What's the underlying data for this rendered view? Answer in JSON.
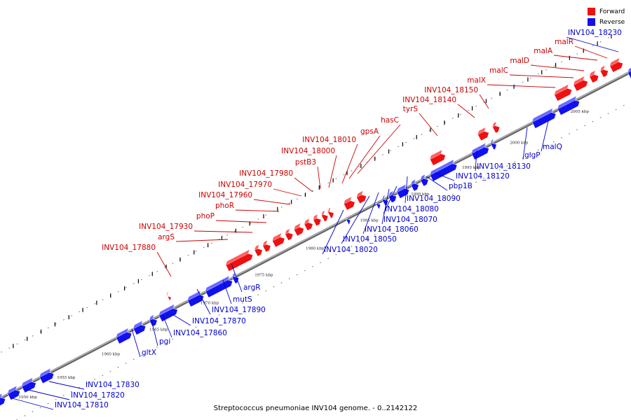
{
  "legend": {
    "forward_label": "Forward",
    "reverse_label": "Reverse"
  },
  "colors": {
    "forward": "#ee1111",
    "reverse": "#1111ee",
    "forward_text": "#cc0000",
    "reverse_text": "#0000cc",
    "backbone": "#888888"
  },
  "caption": "Streptococcus pneumoniae INV104 genome. - 0..2142122",
  "ticks": [
    {
      "label": "1950 kbp"
    },
    {
      "label": "1955 kbp"
    },
    {
      "label": "1960 kbp"
    },
    {
      "label": "1965 kbp"
    },
    {
      "label": "1970 kbp"
    },
    {
      "label": "1975 kbp"
    },
    {
      "label": "1980 kbp"
    },
    {
      "label": "1985 kbp"
    },
    {
      "label": "1990 kbp"
    },
    {
      "label": "1995 kbp"
    },
    {
      "label": "2000 kbp"
    },
    {
      "label": "2005 kbp"
    }
  ],
  "forward_genes": [
    {
      "label": "INV104_17880"
    },
    {
      "label": "argS"
    },
    {
      "label": "INV104_17930"
    },
    {
      "label": "phoP"
    },
    {
      "label": "phoR"
    },
    {
      "label": "INV104_17960"
    },
    {
      "label": "INV104_17970"
    },
    {
      "label": "INV104_17980"
    },
    {
      "label": "pstB3"
    },
    {
      "label": "INV104_18000"
    },
    {
      "label": "INV104_18010"
    },
    {
      "label": "gpsA"
    },
    {
      "label": "hasC"
    },
    {
      "label": "tyrS"
    },
    {
      "label": "INV104_18140"
    },
    {
      "label": "INV104_18150"
    },
    {
      "label": "malX"
    },
    {
      "label": "malC"
    },
    {
      "label": "malD"
    },
    {
      "label": "malA"
    },
    {
      "label": "malR"
    }
  ],
  "reverse_genes": [
    {
      "label": "INV104_17810"
    },
    {
      "label": "INV104_17820"
    },
    {
      "label": "INV104_17830"
    },
    {
      "label": "gltX"
    },
    {
      "label": "pgi"
    },
    {
      "label": "INV104_17860"
    },
    {
      "label": "INV104_17870"
    },
    {
      "label": "INV104_17890"
    },
    {
      "label": "mutS"
    },
    {
      "label": "argR"
    },
    {
      "label": "INV104_18020"
    },
    {
      "label": "INV104_18050"
    },
    {
      "label": "INV104_18060"
    },
    {
      "label": "INV104_18070"
    },
    {
      "label": "INV104_18080"
    },
    {
      "label": "INV104_18090"
    },
    {
      "label": "pbp1B"
    },
    {
      "label": "INV104_18120"
    },
    {
      "label": "INV104_18130"
    },
    {
      "label": "glgP"
    },
    {
      "label": "malQ"
    },
    {
      "label": "INV104_18230"
    }
  ]
}
